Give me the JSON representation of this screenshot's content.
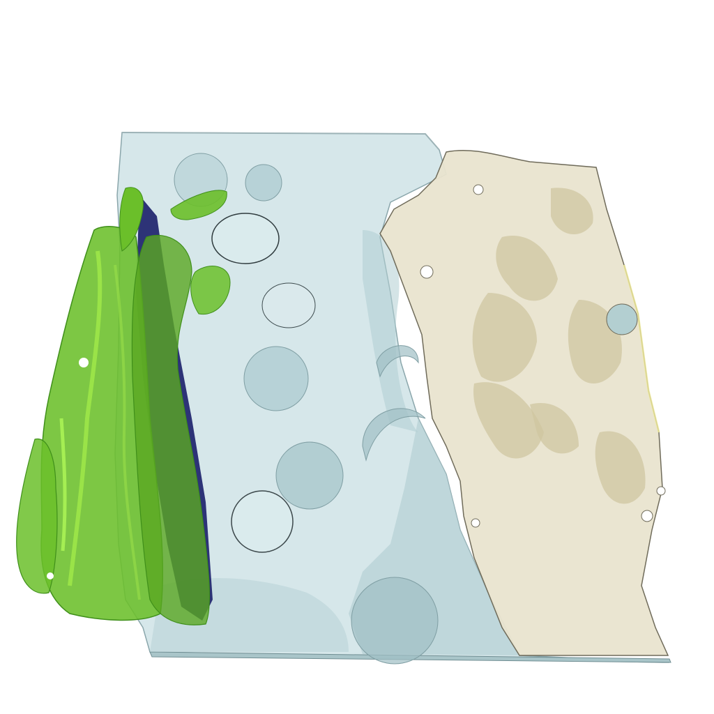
{
  "scene": {
    "background": "#ffffff",
    "regions": [
      {
        "id": "porous-block",
        "color": "#cfe3e6"
      },
      {
        "id": "green-phase",
        "color": "#6bbf2a"
      },
      {
        "id": "beige-phase",
        "color": "#e9e4cf"
      }
    ],
    "accent_colors": {
      "block_edge": "#8aa6ab",
      "pore_shadow": "#9fbfc4",
      "green_dark": "#3f8f1a",
      "green_light": "#9ae04a",
      "navy_shadow": "#1b1f6a",
      "beige_dark": "#cfc6a0",
      "beige_edge": "#6f6b5a"
    }
  }
}
